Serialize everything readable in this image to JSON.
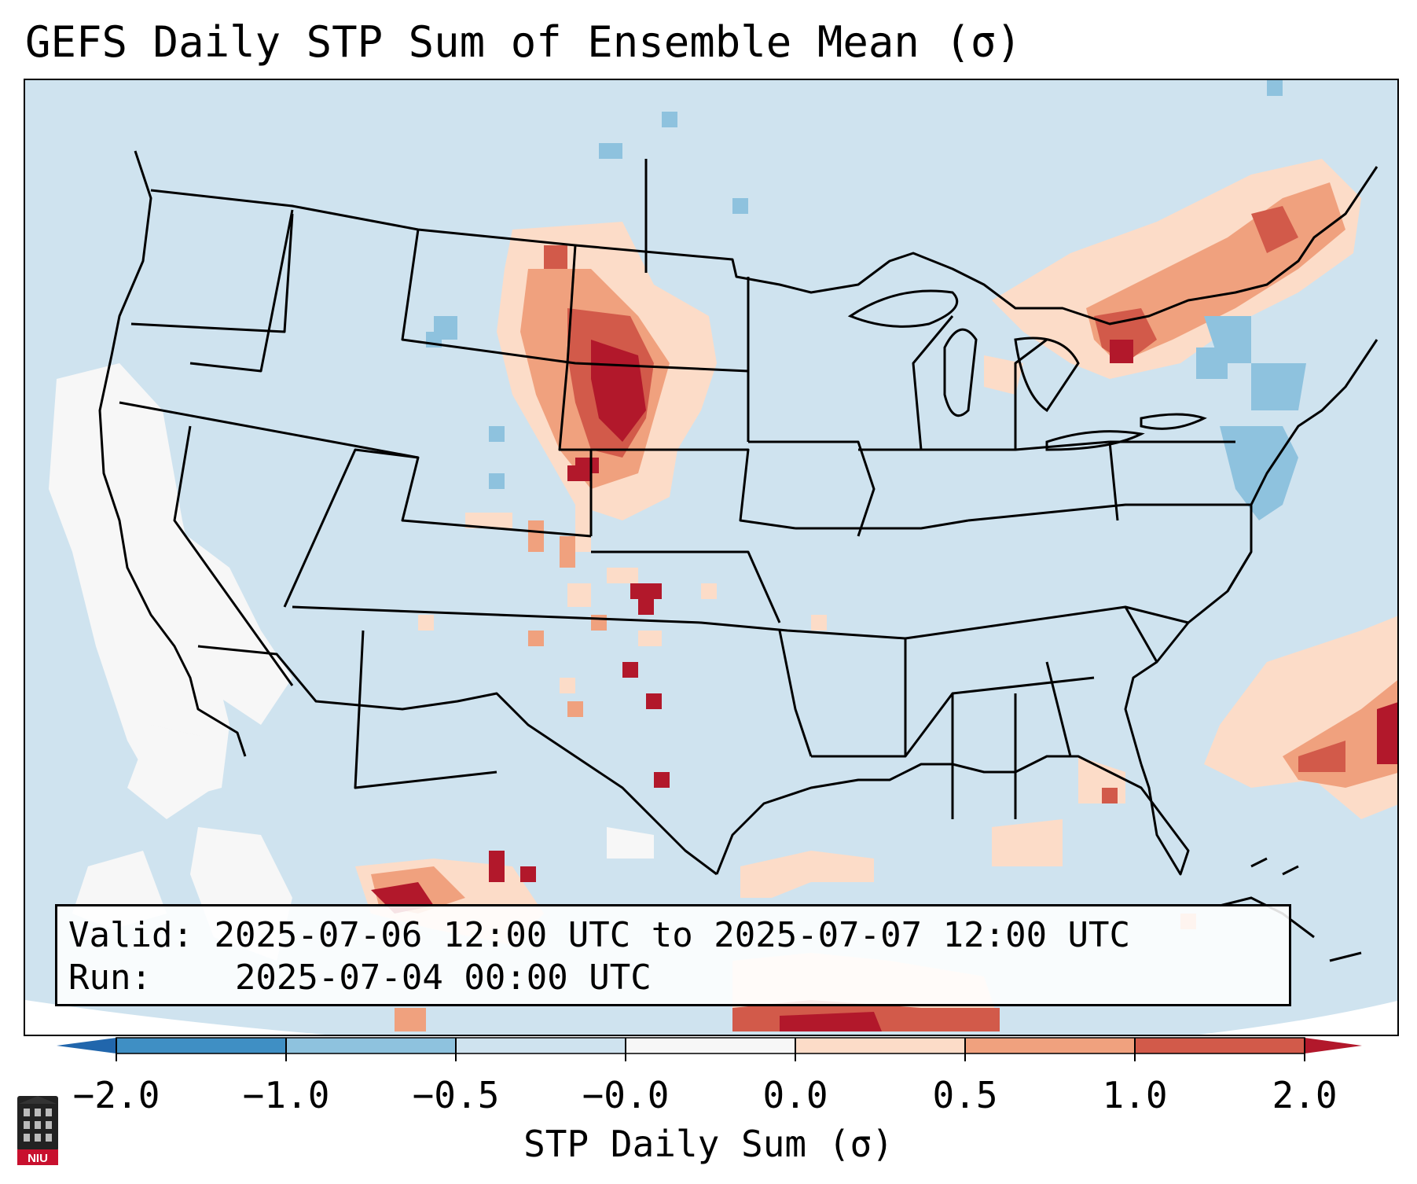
{
  "title": "GEFS Daily STP Sum of Ensemble Mean (σ)",
  "info": {
    "valid_label": "Valid:",
    "valid_value": "2025-07-06 12:00 UTC to 2025-07-07 12:00 UTC",
    "run_label": "Run:",
    "run_value": "2025-07-04 00:00 UTC"
  },
  "colorbar": {
    "label": "STP Daily Sum (σ)",
    "ticks": [
      "−2.0",
      "−1.0",
      "−0.5",
      "−0.0",
      "0.0",
      "0.5",
      "1.0",
      "2.0"
    ],
    "colors": [
      "#2166ac",
      "#4393c3",
      "#92c5de",
      "#d1e5f0",
      "#f7f7f7",
      "#fddbc7",
      "#f4a582",
      "#d6604d",
      "#b2182b"
    ],
    "bin_colors": [
      "#3f8fc4",
      "#8ec2de",
      "#cfe3ef",
      "#f7f7f7",
      "#fcdcc8",
      "#f0a17e",
      "#d25a4a"
    ]
  },
  "logo": {
    "text": "NIU",
    "color": "#c8102e"
  }
}
